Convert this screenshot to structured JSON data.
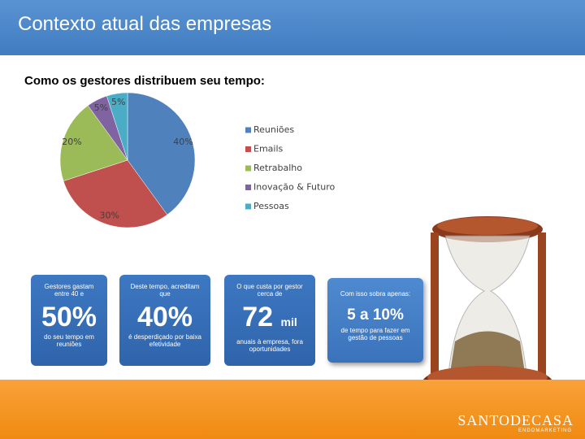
{
  "header": {
    "title": "Contexto atual das empresas"
  },
  "chart_data": {
    "type": "pie",
    "title": "Como os gestores distribuem seu tempo:",
    "categories": [
      "Reuniões",
      "Emails",
      "Retrabalho",
      "Inovação & Futuro",
      "Pessoas"
    ],
    "values": [
      40,
      30,
      20,
      5,
      5
    ],
    "value_labels": [
      "40%",
      "30%",
      "20%",
      "5%",
      "5%"
    ],
    "colors": [
      "#4f81bd",
      "#c0504d",
      "#9bbb59",
      "#8064a2",
      "#4bacc6"
    ],
    "legend": "right"
  },
  "info_boxes": [
    {
      "top": "Gestores gastam entre 40 e",
      "value": "50%",
      "bottom": "do seu tempo em reuniões"
    },
    {
      "top": "Deste tempo, acreditam que",
      "value": "40%",
      "bottom": "é desperdiçado por baixa efetividade"
    },
    {
      "top": "O que custa por gestor cerca de",
      "value": "72",
      "unit": "mil",
      "bottom": "anuais à empresa, fora oportunidades"
    },
    {
      "top": "Com isso sobra apenas:",
      "value": "5 a 10%",
      "bottom": "de tempo para fazer em gestão de pessoas"
    }
  ],
  "footer": {
    "logo": "SANTODECASA",
    "logo_sub": "ENDOMARKETING"
  }
}
